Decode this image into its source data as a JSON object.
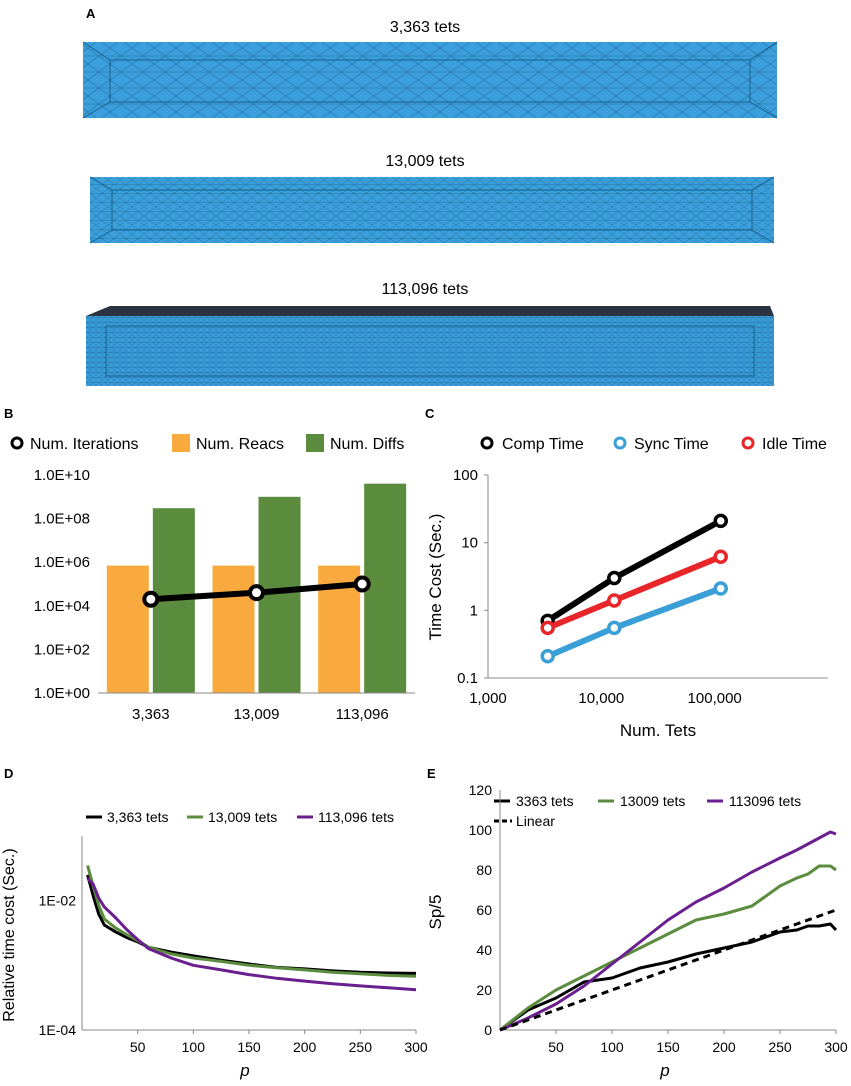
{
  "panel_letters": {
    "a": "A",
    "b": "B",
    "c": "C",
    "d": "D",
    "e": "E"
  },
  "panel_a": {
    "meshes": [
      {
        "label": "3,363 tets"
      },
      {
        "label": "13,009 tets"
      },
      {
        "label": "113,096 tets"
      }
    ],
    "colors": {
      "fill": "#3b9fdc",
      "edge": "#1a5f8e",
      "top": "#2a3440"
    }
  },
  "chart_data": [
    {
      "panel": "B",
      "type": "bar",
      "scale": "log10",
      "categories": [
        "3,363",
        "13,009",
        "113,096"
      ],
      "series": [
        {
          "name": "Num. Reacs",
          "kind": "bar",
          "color": "#f8aa3f",
          "values": [
            700000,
            700000,
            700000
          ]
        },
        {
          "name": "Num. Diffs",
          "kind": "bar",
          "color": "#5b8c3e",
          "values": [
            300000000,
            1000000000,
            4000000000
          ]
        },
        {
          "name": "Num. Iterations",
          "kind": "line",
          "color": "#000000",
          "values": [
            20000,
            40000,
            100000
          ]
        }
      ],
      "legend": [
        "Num. Iterations",
        "Num. Reacs",
        "Num. Diffs"
      ],
      "yticks": [
        "1.0E+00",
        "1.0E+02",
        "1.0E+04",
        "1.0E+06",
        "1.0E+08",
        "1.0E+10"
      ],
      "ylim": [
        1,
        10000000000
      ]
    },
    {
      "panel": "C",
      "type": "line",
      "scale": "log-log",
      "x": [
        3363,
        13009,
        113096
      ],
      "series": [
        {
          "name": "Comp Time",
          "color": "#000000",
          "values": [
            0.7,
            3.0,
            21.0
          ]
        },
        {
          "name": "Sync Time",
          "color": "#3a9fd6",
          "values": [
            0.21,
            0.55,
            2.1
          ]
        },
        {
          "name": "Idle Time",
          "color": "#e8262a",
          "values": [
            0.55,
            1.4,
            6.2
          ]
        }
      ],
      "xticks": [
        "1,000",
        "10,000",
        "100,000"
      ],
      "yticks": [
        "0.1",
        "1",
        "10",
        "100"
      ],
      "xlim": [
        1000,
        1000000
      ],
      "ylim": [
        0.1,
        100
      ],
      "xlabel": "Num. Tets",
      "ylabel": "Time Cost (Sec.)"
    },
    {
      "panel": "D",
      "type": "line",
      "scale": "log-y",
      "x": [
        5,
        10,
        15,
        20,
        30,
        40,
        50,
        60,
        80,
        100,
        125,
        150,
        175,
        200,
        225,
        250,
        275,
        300
      ],
      "series": [
        {
          "name": "3,363 tets",
          "color": "#000000",
          "values": [
            0.025,
            0.012,
            0.0062,
            0.0042,
            0.0033,
            0.0027,
            0.0023,
            0.0019,
            0.0016,
            0.0014,
            0.0012,
            0.00105,
            0.00093,
            0.00088,
            0.00082,
            0.00078,
            0.00076,
            0.00075
          ]
        },
        {
          "name": "13,009 tets",
          "color": "#5b8c3e",
          "values": [
            0.035,
            0.017,
            0.0085,
            0.0052,
            0.0038,
            0.003,
            0.0024,
            0.0019,
            0.0015,
            0.0013,
            0.00115,
            0.001,
            0.00092,
            0.00085,
            0.00078,
            0.00074,
            0.0007,
            0.00068
          ]
        },
        {
          "name": "113,096 tets",
          "color": "#6a1f8e",
          "values": [
            0.022,
            0.018,
            0.011,
            0.008,
            0.0055,
            0.0036,
            0.0025,
            0.0018,
            0.0013,
            0.001,
            0.00085,
            0.00072,
            0.00063,
            0.00057,
            0.00052,
            0.00048,
            0.00045,
            0.00042
          ]
        }
      ],
      "xticks": [
        "50",
        "100",
        "150",
        "200",
        "250",
        "300"
      ],
      "yticks": [
        "1E-04",
        "1E-02"
      ],
      "xlim": [
        0,
        300
      ],
      "ylim": [
        0.0001,
        0.1
      ],
      "xlabel": "p",
      "ylabel": "Relative time cost (Sec.)"
    },
    {
      "panel": "E",
      "type": "line",
      "x": [
        0,
        25,
        50,
        75,
        100,
        125,
        150,
        175,
        200,
        225,
        250,
        265,
        275,
        285,
        295,
        300
      ],
      "series": [
        {
          "name": "3363 tets",
          "color": "#000000",
          "values": [
            0,
            10,
            16,
            24,
            26,
            31,
            34,
            38,
            41,
            44,
            49,
            50,
            52,
            52,
            53,
            50
          ]
        },
        {
          "name": "13009 tets",
          "color": "#5b8c3e",
          "values": [
            0,
            11,
            20,
            27,
            34,
            41,
            48,
            55,
            58,
            62,
            72,
            76,
            78,
            82,
            82,
            80
          ]
        },
        {
          "name": "113096 tets",
          "color": "#6a1f8e",
          "values": [
            0,
            6,
            13,
            22,
            33,
            44,
            55,
            64,
            71,
            79,
            86,
            90,
            93,
            96,
            99,
            98
          ]
        },
        {
          "name": "Linear",
          "color": "#000000",
          "dashed": true,
          "values": [
            0,
            5,
            10,
            15,
            20,
            25,
            30,
            35,
            40,
            45,
            50,
            53,
            55,
            57,
            59,
            60
          ]
        }
      ],
      "xticks": [
        "50",
        "100",
        "150",
        "200",
        "250",
        "300"
      ],
      "yticks": [
        "0",
        "20",
        "40",
        "60",
        "80",
        "100",
        "120"
      ],
      "xlim": [
        0,
        300
      ],
      "ylim": [
        0,
        120
      ],
      "xlabel": "p",
      "ylabel": "Sp/5"
    }
  ]
}
